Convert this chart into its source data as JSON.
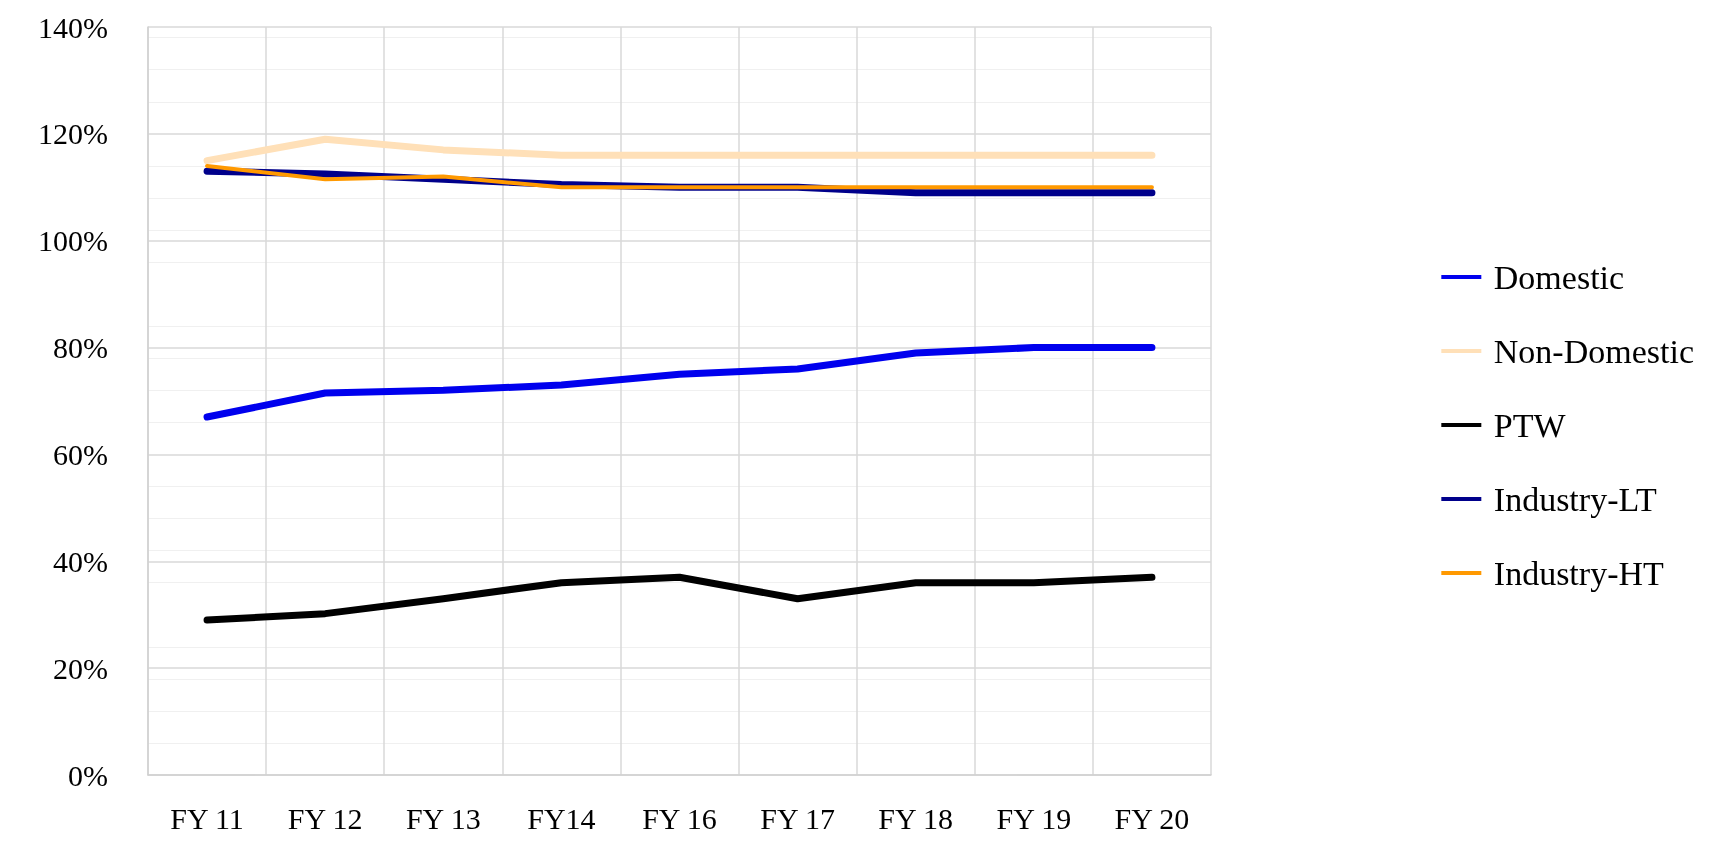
{
  "chart_data": {
    "type": "line",
    "categories": [
      "FY 11",
      "FY 12",
      "FY 13",
      "FY14",
      "FY 16",
      "FY 17",
      "FY 18",
      "FY 19",
      "FY 20"
    ],
    "series": [
      {
        "name": "Domestic",
        "color": "#0000ee",
        "values": [
          67,
          71.5,
          72,
          73,
          75,
          76,
          79,
          80,
          80
        ]
      },
      {
        "name": "Non-Domestic",
        "color": "#ffe0b8",
        "values": [
          115,
          119,
          117,
          116,
          116,
          116,
          116,
          116,
          116
        ]
      },
      {
        "name": "PTW",
        "color": "#000000",
        "values": [
          29,
          30.2,
          33,
          36,
          37,
          33,
          36,
          36,
          37
        ]
      },
      {
        "name": "Industry-LT",
        "color": "#00008b",
        "values": [
          113,
          112.5,
          111.5,
          110.5,
          110,
          110,
          109,
          109,
          109
        ]
      },
      {
        "name": "Industry-HT",
        "color": "#ff9900",
        "values": [
          114,
          111.5,
          112,
          110,
          110,
          110,
          110,
          110,
          110
        ]
      }
    ],
    "ylim": [
      0,
      140
    ],
    "yticks": [
      {
        "value": 0,
        "label": "0%"
      },
      {
        "value": 20,
        "label": "20%"
      },
      {
        "value": 40,
        "label": "40%"
      },
      {
        "value": 60,
        "label": "60%"
      },
      {
        "value": 80,
        "label": "80%"
      },
      {
        "value": 100,
        "label": "100%"
      },
      {
        "value": 120,
        "label": "120%"
      },
      {
        "value": 140,
        "label": "140%"
      }
    ],
    "grid": true,
    "legend": "right",
    "marker": "none",
    "line_style": "solid"
  }
}
